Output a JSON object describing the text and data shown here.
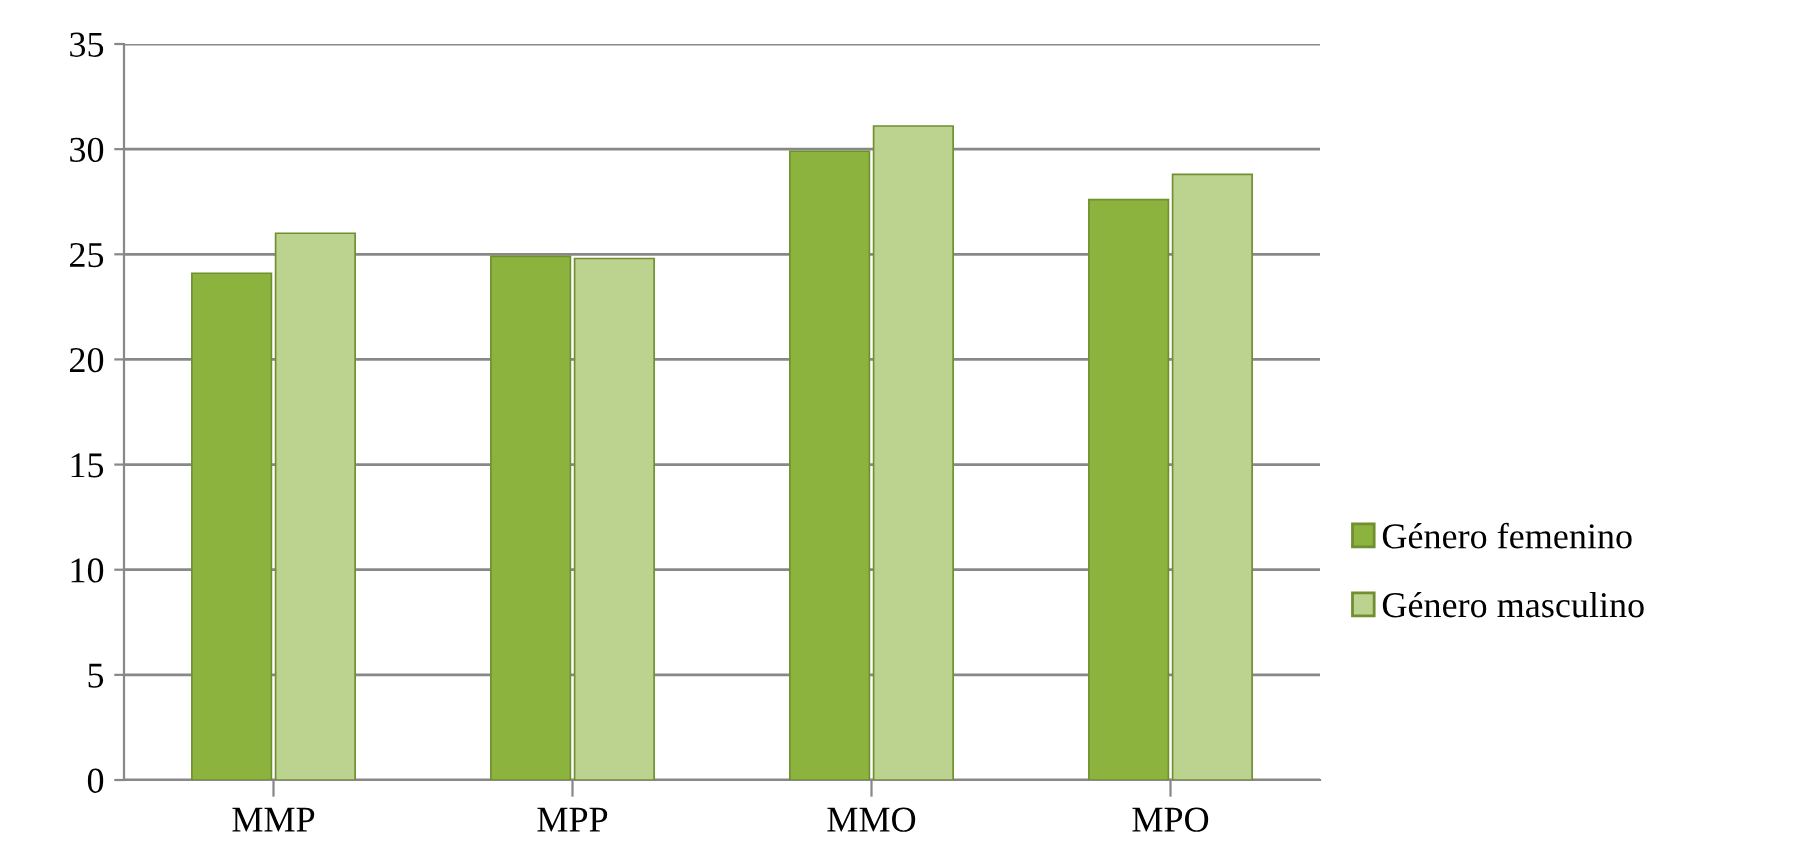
{
  "chart_data": {
    "type": "bar",
    "categories": [
      "MMP",
      "MPP",
      "MMO",
      "MPO"
    ],
    "series": [
      {
        "name": "Género femenino",
        "color": "#8db33f",
        "values": [
          24.1,
          24.9,
          29.9,
          27.6
        ]
      },
      {
        "name": "Género masculino",
        "color": "#bcd38f",
        "values": [
          26.0,
          24.8,
          31.1,
          28.8
        ]
      }
    ],
    "ylim": [
      0,
      35
    ],
    "yticks": [
      0,
      5,
      10,
      15,
      20,
      25,
      30,
      35
    ],
    "grid": "y",
    "legend": "right"
  }
}
